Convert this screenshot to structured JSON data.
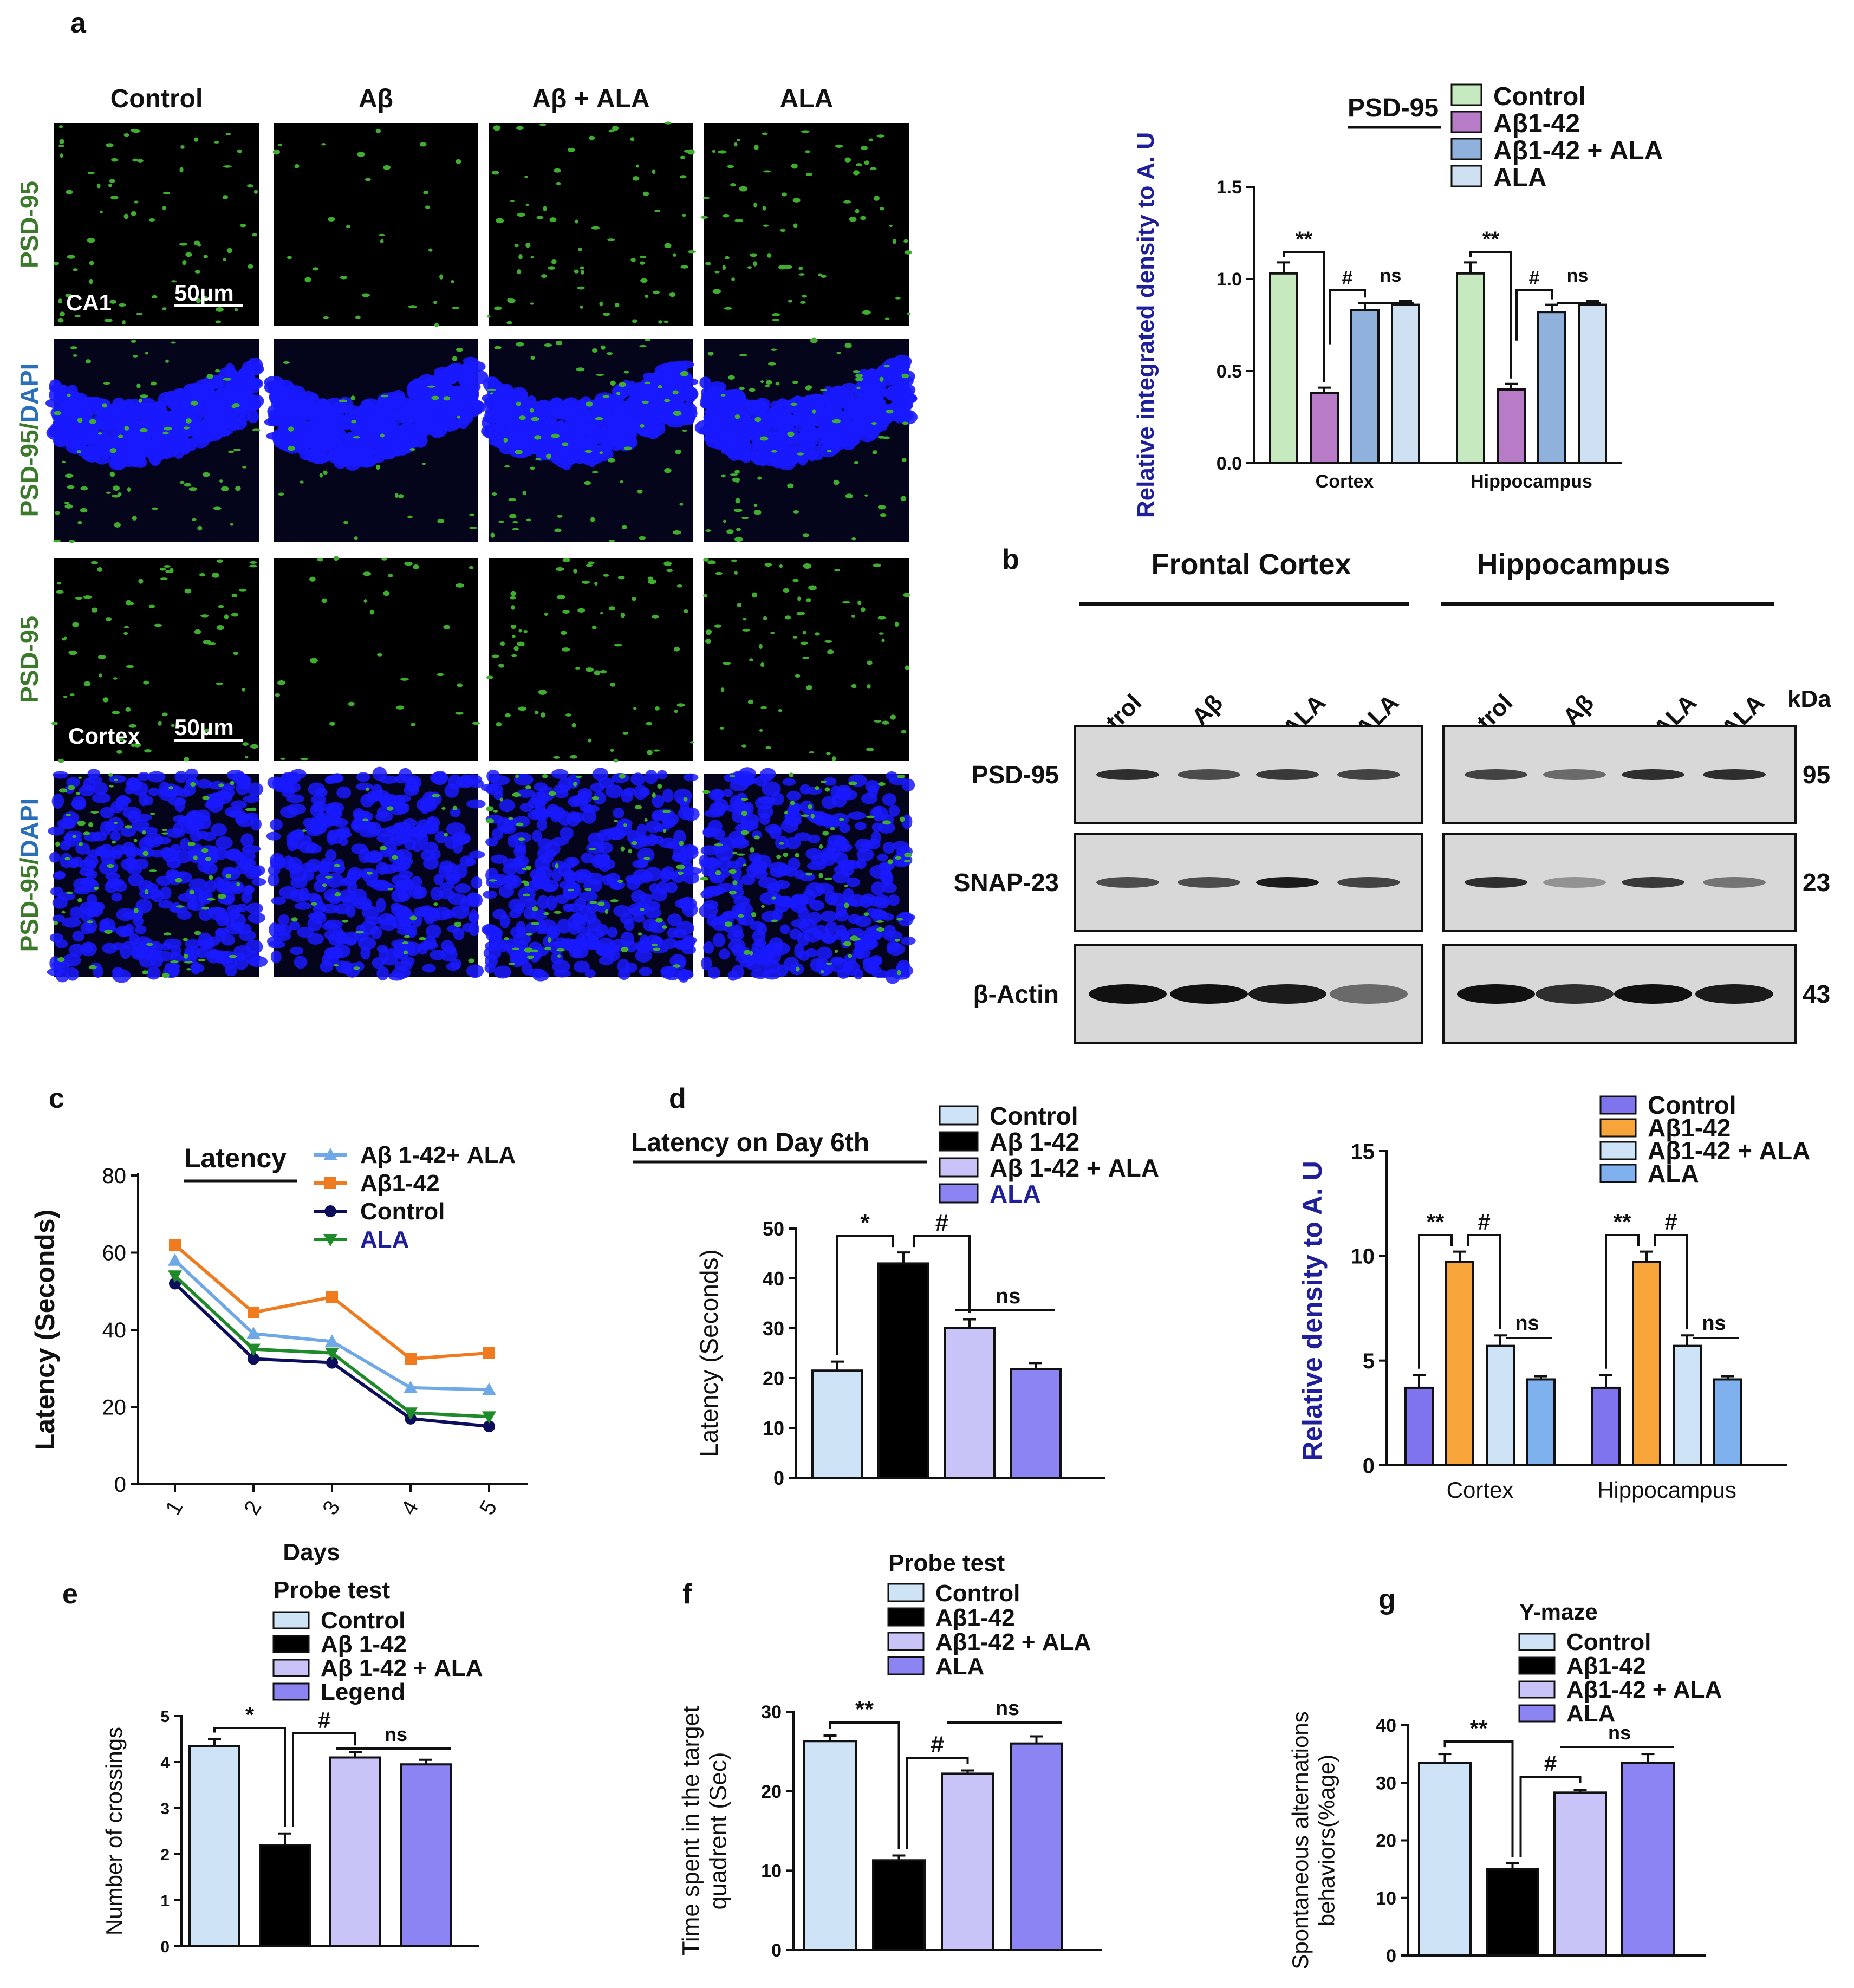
{
  "colors": {
    "green_fluor": "#3fae2f",
    "dapi_blue": "#1a1aff",
    "navy_text": "#1f1f9a",
    "psd_label_green": "#3b7a2a",
    "dapi_label_blue": "#2a6fb8",
    "bar_control_a": "#c7e9c0",
    "bar_abeta_a": "#b87bc7",
    "bar_combo_a": "#8fb1dc",
    "bar_ala_a": "#cfe0f3",
    "bar_control_light": "#cfe3f7",
    "bar_abeta_black": "#000000",
    "bar_combo_lavender": "#c8c4f7",
    "bar_ala_violet": "#8c84f2",
    "line_combo": "#6fa8e6",
    "line_abeta": "#f07a1e",
    "line_control": "#0d0d5e",
    "line_ala": "#1f8a2a",
    "snap_control": "#7f73ee",
    "snap_abeta": "#f7a43b",
    "snap_combo": "#cfe3f7",
    "snap_ala": "#7fb1ee"
  },
  "panel_a": {
    "label": "a",
    "columns": [
      "Control",
      "Aβ",
      "Aβ + ALA",
      "ALA"
    ],
    "row_labels": [
      "PSD-95",
      "PSD-95/",
      "PSD-95",
      "PSD-95/"
    ],
    "dapi_word": "DAPI",
    "region_ca1": "CA1",
    "region_cortex": "Cortex",
    "scale_bar": "50μm"
  },
  "panel_b": {
    "label": "b",
    "region_titles": [
      "Frontal Cortex",
      "Hippocampus"
    ],
    "lanes": [
      "Control",
      "Aβ",
      "Aβ + ALA",
      "ALA"
    ],
    "kda_label": "kDa",
    "proteins": [
      "PSD-95",
      "SNAP-23",
      "β-Actin"
    ],
    "weights": [
      "95",
      "23",
      "43"
    ]
  },
  "chart_data": [
    {
      "id": "psd95_density",
      "type": "bar",
      "title": "PSD-95",
      "ylabel": "Relative integrated density to A. U",
      "ylim": [
        0,
        1.5
      ],
      "yticks": [
        "0.0",
        "0.5",
        "1.0",
        "1.5"
      ],
      "categories": [
        "Cortex",
        "Hippocampus"
      ],
      "series": [
        {
          "name": "Control",
          "values": [
            1.03,
            1.03
          ],
          "err": [
            0.06,
            0.06
          ]
        },
        {
          "name": "Aβ1-42",
          "values": [
            0.38,
            0.4
          ],
          "err": [
            0.03,
            0.03
          ]
        },
        {
          "name": "Aβ1-42 + ALA",
          "values": [
            0.83,
            0.82
          ],
          "err": [
            0.04,
            0.04
          ]
        },
        {
          "name": "ALA",
          "values": [
            0.86,
            0.86
          ],
          "err": [
            0.02,
            0.02
          ]
        }
      ],
      "annotations": [
        "**",
        "#",
        "ns",
        "**",
        "#",
        "ns"
      ]
    },
    {
      "id": "latency_days",
      "type": "line",
      "title": "Latency",
      "xlabel": "Days",
      "ylabel": "Latency (Seconds)",
      "x": [
        "1",
        "2",
        "3",
        "4",
        "5"
      ],
      "ylim": [
        0,
        80
      ],
      "yticks": [
        "0",
        "20",
        "40",
        "60",
        "80"
      ],
      "series": [
        {
          "name": "Aβ 1-42+ ALA",
          "values": [
            58,
            39,
            37,
            25,
            24.5
          ]
        },
        {
          "name": "Aβ1-42",
          "values": [
            62,
            44.5,
            48.5,
            32.5,
            34
          ]
        },
        {
          "name": "Control",
          "values": [
            52,
            32.5,
            31.5,
            17,
            15
          ]
        },
        {
          "name": "ALA",
          "values": [
            54,
            35,
            34,
            18.5,
            17.5
          ]
        }
      ]
    },
    {
      "id": "latency_day6",
      "type": "bar",
      "title": "Latency on Day 6th",
      "ylabel": "Latency (Seconds)",
      "ylim": [
        0,
        50
      ],
      "yticks": [
        "0",
        "10",
        "20",
        "30",
        "40",
        "50"
      ],
      "series": [
        {
          "name": "Control",
          "value": 21.5,
          "err": 1.8
        },
        {
          "name": "Aβ 1-42",
          "value": 43,
          "err": 2.2
        },
        {
          "name": "Aβ 1-42 + ALA",
          "value": 30,
          "err": 1.8
        },
        {
          "name": "ALA",
          "value": 21.8,
          "err": 1.2
        }
      ],
      "annotations": [
        "*",
        "#",
        "ns"
      ]
    },
    {
      "id": "snap23_density",
      "type": "bar",
      "ylabel": "Relative density to A. U",
      "ylim": [
        0,
        15
      ],
      "yticks": [
        "0",
        "5",
        "10",
        "15"
      ],
      "categories": [
        "Cortex",
        "Hippocampus"
      ],
      "series": [
        {
          "name": "Control",
          "values": [
            3.7,
            3.7
          ],
          "err": [
            0.6,
            0.6
          ]
        },
        {
          "name": "Aβ1-42",
          "values": [
            9.7,
            9.7
          ],
          "err": [
            0.5,
            0.5
          ]
        },
        {
          "name": "Aβ1-42 + ALA",
          "values": [
            5.7,
            5.7
          ],
          "err": [
            0.5,
            0.5
          ]
        },
        {
          "name": "ALA",
          "values": [
            4.1,
            4.1
          ],
          "err": [
            0.15,
            0.15
          ]
        }
      ],
      "annotations": [
        "**",
        "#",
        "ns",
        "**",
        "#",
        "ns"
      ]
    },
    {
      "id": "probe_crossings",
      "type": "bar",
      "title": "Probe test",
      "ylabel": "Number of crossings",
      "ylim": [
        0,
        5
      ],
      "yticks": [
        "0",
        "1",
        "2",
        "3",
        "4",
        "5"
      ],
      "series": [
        {
          "name": "Control",
          "value": 4.35,
          "err": 0.15
        },
        {
          "name": "Aβ 1-42",
          "value": 2.2,
          "err": 0.25
        },
        {
          "name": "Aβ 1-42 + ALA",
          "value": 4.1,
          "err": 0.12
        },
        {
          "name": "Legend",
          "value": 3.95,
          "err": 0.1
        }
      ],
      "annotations": [
        "*",
        "#",
        "ns"
      ]
    },
    {
      "id": "probe_time",
      "type": "bar",
      "title": "Probe test",
      "ylabel": "Time spent in the target quadrent (Sec)",
      "ylim": [
        0,
        30
      ],
      "yticks": [
        "0",
        "10",
        "20",
        "30"
      ],
      "series": [
        {
          "name": "Control",
          "value": 26.3,
          "err": 0.7
        },
        {
          "name": "Aβ1-42",
          "value": 11.3,
          "err": 0.6
        },
        {
          "name": "Aβ1-42 + ALA",
          "value": 22.2,
          "err": 0.4
        },
        {
          "name": "ALA",
          "value": 26,
          "err": 0.9
        }
      ],
      "annotations": [
        "**",
        "#",
        "ns"
      ]
    },
    {
      "id": "ymaze",
      "type": "bar",
      "title": "Y-maze",
      "ylabel": "Spontaneous alternations behaviors(%age)",
      "ylim": [
        0,
        40
      ],
      "yticks": [
        "0",
        "10",
        "20",
        "30",
        "40"
      ],
      "series": [
        {
          "name": "Control",
          "value": 33.5,
          "err": 1.5
        },
        {
          "name": "Aβ1-42",
          "value": 15,
          "err": 1
        },
        {
          "name": "Aβ1-42 + ALA",
          "value": 28.3,
          "err": 0.5
        },
        {
          "name": "ALA",
          "value": 33.5,
          "err": 1.5
        }
      ],
      "annotations": [
        "**",
        "#",
        "ns"
      ]
    }
  ],
  "panel_labels": {
    "c": "c",
    "d": "d",
    "e": "e",
    "f": "f",
    "g": "g"
  }
}
